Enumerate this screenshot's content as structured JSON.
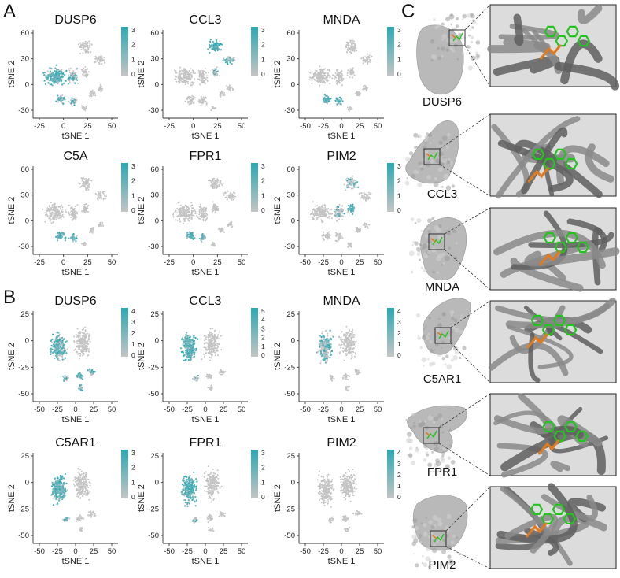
{
  "panels": {
    "A": {
      "letter": "A",
      "xlabel": "tSNE 1",
      "ylabel": "tSNE 2",
      "xticks": [
        "-25",
        "0",
        "25",
        "50"
      ],
      "yticks": [
        "60",
        "30",
        "0",
        "-30"
      ],
      "xticks_wide": [
        "-50",
        "-25",
        "0",
        "25",
        "50"
      ],
      "plots": [
        {
          "gene": "DUSP6",
          "cbar": [
            "3",
            "2",
            "1",
            "0"
          ],
          "expr": "broad-left"
        },
        {
          "gene": "CCL3",
          "cbar": [
            "3",
            "2",
            "1",
            "0"
          ],
          "expr": "upper-right"
        },
        {
          "gene": "MNDA",
          "cbar": [
            "3",
            "2",
            "1",
            "0"
          ],
          "expr": "lower-left"
        },
        {
          "gene": "C5A",
          "cbar": [
            "3",
            "2",
            "1",
            "0"
          ],
          "expr": "lower-left"
        },
        {
          "gene": "FPR1",
          "cbar": [
            "3",
            "2",
            "1",
            "0"
          ],
          "expr": "lower-left"
        },
        {
          "gene": "PIM2",
          "cbar": [
            "3",
            "2",
            "1",
            "0"
          ],
          "expr": "center"
        }
      ]
    },
    "B": {
      "letter": "B",
      "xlabel": "tSNE 1",
      "ylabel": "tSNE 2",
      "xticks": [
        "-50",
        "-25",
        "0",
        "25",
        "50"
      ],
      "yticks": [
        "25",
        "0",
        "-25",
        "-50"
      ],
      "plots": [
        {
          "gene": "DUSP6",
          "cbar": [
            "4",
            "3",
            "2",
            "1",
            "0"
          ],
          "expr": "left-and-bottom"
        },
        {
          "gene": "CCL3",
          "cbar": [
            "5",
            "4",
            "3",
            "2",
            "1",
            "0"
          ],
          "expr": "left"
        },
        {
          "gene": "MNDA",
          "cbar": [
            "4",
            "3",
            "2",
            "1",
            "0"
          ],
          "expr": "upper-left"
        },
        {
          "gene": "C5AR1",
          "cbar": [
            "3",
            "2",
            "1",
            "0"
          ],
          "expr": "left"
        },
        {
          "gene": "FPR1",
          "cbar": [
            "3",
            "2",
            "1",
            "0"
          ],
          "expr": "left"
        },
        {
          "gene": "PIM2",
          "cbar": [
            "4",
            "3",
            "2",
            "1",
            "0"
          ],
          "expr": "none"
        }
      ]
    },
    "C": {
      "letter": "C",
      "proteins": [
        "DUSP6",
        "CCL3",
        "MNDA",
        "C5AR1",
        "FPR1",
        "PIM2"
      ]
    }
  },
  "colors": {
    "high": "#2aa9b4",
    "low": "#c4c4c4",
    "ligand": "#22c51e",
    "residue": "#e07b1f",
    "surface": "#b4b4b4",
    "ribbon": "#6f6f6f"
  }
}
